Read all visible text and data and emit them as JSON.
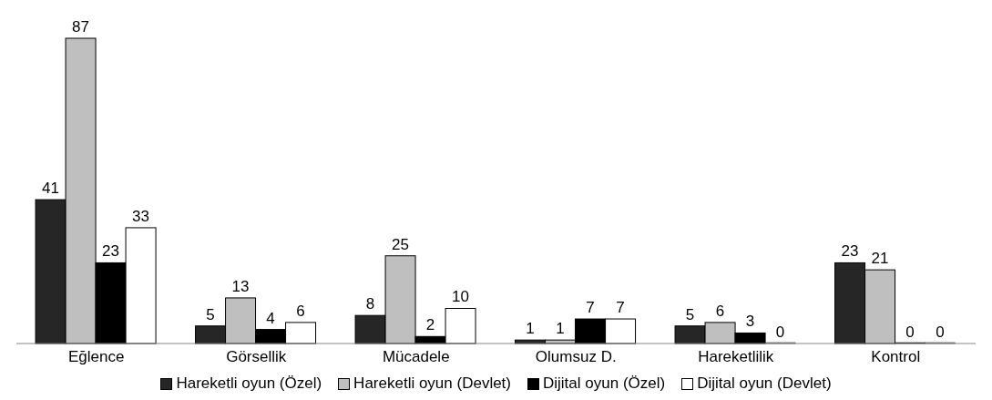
{
  "chart_data": {
    "type": "bar",
    "categories": [
      "Eğlence",
      "Görsellik",
      "Mücadele",
      "Olumsuz D.",
      "Hareketlilik",
      "Kontrol"
    ],
    "series": [
      {
        "name": "Hareketli oyun (Özel)",
        "color": "#262626",
        "values": [
          41,
          5,
          8,
          1,
          5,
          23
        ]
      },
      {
        "name": "Hareketli oyun (Devlet)",
        "color": "#bfbfbf",
        "values": [
          87,
          13,
          25,
          1,
          6,
          21
        ]
      },
      {
        "name": "Dijital oyun (Özel)",
        "color": "#000000",
        "values": [
          23,
          4,
          2,
          7,
          3,
          0
        ]
      },
      {
        "name": "Dijital oyun (Devlet)",
        "color": "#ffffff",
        "values": [
          33,
          6,
          10,
          7,
          0,
          0
        ]
      }
    ],
    "data_labels": true,
    "grid": false,
    "legend": "bottom"
  }
}
